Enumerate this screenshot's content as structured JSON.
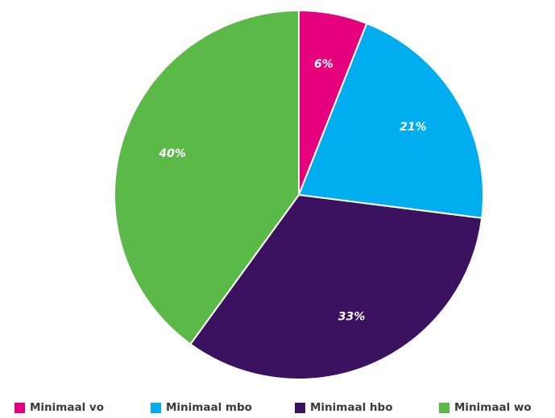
{
  "chart_data": {
    "type": "pie",
    "slices": [
      {
        "name": "Minimaal vo",
        "value": 6,
        "label": "6%",
        "color": "#e5007d"
      },
      {
        "name": "Minimaal mbo",
        "value": 21,
        "label": "21%",
        "color": "#00aeef"
      },
      {
        "name": "Minimaal hbo",
        "value": 33,
        "label": "33%",
        "color": "#3b125f"
      },
      {
        "name": "Minimaal wo",
        "value": 40,
        "label": "40%",
        "color": "#5bb947"
      }
    ],
    "legend_position": "bottom"
  }
}
